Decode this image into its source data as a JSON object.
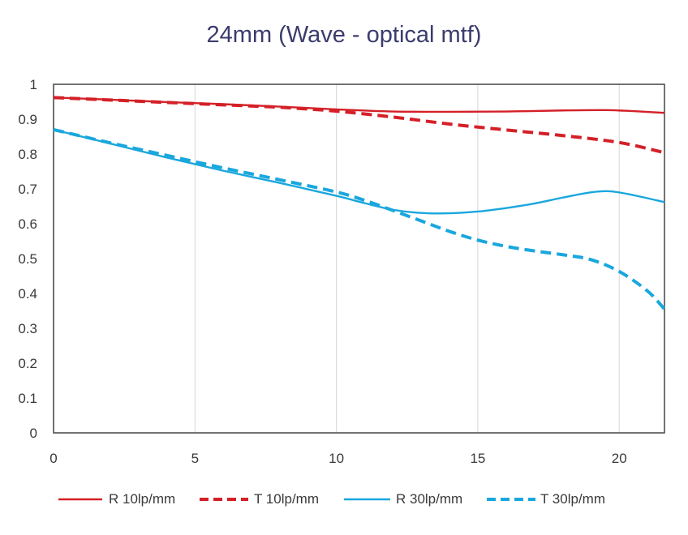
{
  "chart_data": {
    "type": "line",
    "title": "24mm  (Wave - optical mtf)",
    "xlabel": "",
    "ylabel": "",
    "xlim": [
      0,
      21.6
    ],
    "ylim": [
      0,
      1
    ],
    "x_ticks": [
      0,
      5,
      10,
      15,
      20
    ],
    "x_tick_labels": [
      "0",
      "5",
      "10",
      "15",
      "20"
    ],
    "y_ticks": [
      0,
      0.1,
      0.2,
      0.3,
      0.4,
      0.5,
      0.6,
      0.7,
      0.8,
      0.9,
      1
    ],
    "y_tick_labels": [
      "0",
      "0.1",
      "0.2",
      "0.3",
      "0.4",
      "0.5",
      "0.6",
      "0.7",
      "0.8",
      "0.9",
      "1"
    ],
    "grid": "vertical",
    "legend_position": "bottom",
    "series": [
      {
        "name": "R 10lp/mm",
        "color": "#d42027",
        "dash": "solid",
        "x": [
          0,
          2,
          4,
          6,
          8,
          10,
          12,
          14,
          16,
          18,
          19.5,
          20.5,
          21.6
        ],
        "y": [
          0.962,
          0.956,
          0.949,
          0.943,
          0.936,
          0.928,
          0.922,
          0.921,
          0.922,
          0.925,
          0.926,
          0.923,
          0.918
        ]
      },
      {
        "name": "T 10lp/mm",
        "color": "#d42027",
        "dash": "dashed",
        "x": [
          0,
          2,
          4,
          6,
          8,
          10,
          12,
          14,
          16,
          18,
          20,
          21.6
        ],
        "y": [
          0.962,
          0.955,
          0.948,
          0.941,
          0.934,
          0.923,
          0.906,
          0.886,
          0.869,
          0.853,
          0.833,
          0.804
        ]
      },
      {
        "name": "R 30lp/mm",
        "color": "#1aa7dd",
        "dash": "solid",
        "x": [
          0,
          2,
          4,
          6,
          8,
          10,
          11,
          12,
          13,
          14,
          15,
          16,
          17,
          18,
          19,
          19.7,
          20.5,
          21.6
        ],
        "y": [
          0.87,
          0.83,
          0.79,
          0.752,
          0.717,
          0.68,
          0.659,
          0.64,
          0.631,
          0.63,
          0.635,
          0.645,
          0.658,
          0.675,
          0.69,
          0.693,
          0.682,
          0.662
        ]
      },
      {
        "name": "T 30lp/mm",
        "color": "#1aa7dd",
        "dash": "dashed",
        "x": [
          0,
          2,
          4,
          6,
          8,
          10,
          11,
          12,
          13,
          14,
          15,
          16,
          17,
          18,
          19,
          20,
          21,
          21.6
        ],
        "y": [
          0.87,
          0.832,
          0.796,
          0.76,
          0.726,
          0.691,
          0.667,
          0.638,
          0.608,
          0.578,
          0.553,
          0.535,
          0.522,
          0.511,
          0.497,
          0.463,
          0.407,
          0.355
        ]
      }
    ]
  }
}
